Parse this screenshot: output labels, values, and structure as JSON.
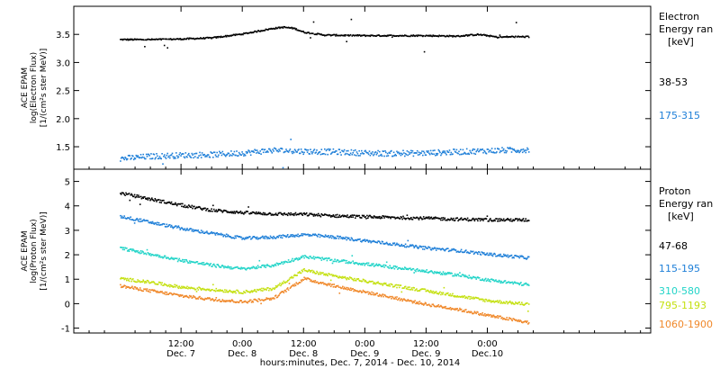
{
  "chart_data": [
    {
      "type": "scatter",
      "panel": "electron",
      "ylabel": [
        "ACE EPAM",
        "log(Electron Flux)",
        "[1/(cm²s ster MeV)]"
      ],
      "ylim": [
        1.1,
        4.0
      ],
      "yticks": [
        1.5,
        2.0,
        2.5,
        3.0,
        3.5
      ],
      "ytick_labels": [
        "1.5",
        "2.0",
        "2.5",
        "3.0",
        "3.5"
      ],
      "legend_title": [
        "Electron",
        "Energy ran",
        "[keV]"
      ],
      "series": [
        {
          "name": "38-53",
          "color": "#000000",
          "x": [
            0,
            6,
            12,
            18,
            24,
            30,
            32,
            34,
            36,
            40,
            48,
            54,
            60,
            66,
            70,
            72,
            74,
            76,
            80
          ],
          "y": [
            3.42,
            3.42,
            3.43,
            3.45,
            3.52,
            3.62,
            3.64,
            3.62,
            3.55,
            3.5,
            3.49,
            3.49,
            3.49,
            3.48,
            3.51,
            3.49,
            3.46,
            3.47,
            3.47
          ]
        },
        {
          "name": "175-315",
          "color": "#1e7fd8",
          "x": [
            0,
            6,
            12,
            18,
            24,
            30,
            36,
            42,
            48,
            54,
            60,
            66,
            72,
            80
          ],
          "y": [
            1.3,
            1.34,
            1.36,
            1.37,
            1.4,
            1.45,
            1.43,
            1.42,
            1.4,
            1.39,
            1.4,
            1.42,
            1.44,
            1.46
          ]
        }
      ]
    },
    {
      "type": "scatter",
      "panel": "proton",
      "ylabel": [
        "ACE EPAM",
        "log(Proton Flux)",
        "[1/(cm²s ster MeV)]"
      ],
      "ylim": [
        -1.2,
        5.5
      ],
      "yticks": [
        -1,
        0,
        1,
        2,
        3,
        4,
        5
      ],
      "ytick_labels": [
        "-1",
        "0",
        "1",
        "2",
        "3",
        "4",
        "5"
      ],
      "legend_title": [
        "Proton",
        "Energy ran",
        "[keV]"
      ],
      "series": [
        {
          "name": "47-68",
          "color": "#000000",
          "x": [
            0,
            6,
            12,
            18,
            24,
            30,
            36,
            42,
            48,
            54,
            60,
            66,
            72,
            80
          ],
          "y": [
            4.55,
            4.3,
            4.05,
            3.85,
            3.75,
            3.7,
            3.68,
            3.62,
            3.58,
            3.55,
            3.52,
            3.48,
            3.46,
            3.45
          ]
        },
        {
          "name": "115-195",
          "color": "#1e7fd8",
          "x": [
            0,
            6,
            12,
            18,
            24,
            30,
            36,
            42,
            48,
            54,
            60,
            66,
            72,
            80
          ],
          "y": [
            3.6,
            3.35,
            3.1,
            2.9,
            2.7,
            2.75,
            2.85,
            2.75,
            2.6,
            2.45,
            2.3,
            2.2,
            2.05,
            1.9
          ]
        },
        {
          "name": "310-580",
          "color": "#22d4c8",
          "x": [
            0,
            6,
            12,
            18,
            24,
            30,
            36,
            42,
            48,
            54,
            60,
            66,
            72,
            80
          ],
          "y": [
            2.3,
            2.05,
            1.8,
            1.6,
            1.45,
            1.6,
            1.95,
            1.8,
            1.65,
            1.5,
            1.35,
            1.2,
            1.0,
            0.8
          ]
        },
        {
          "name": "795-1193",
          "color": "#c4e010",
          "x": [
            0,
            6,
            12,
            18,
            24,
            30,
            36,
            42,
            48,
            54,
            60,
            66,
            72,
            80
          ],
          "y": [
            1.05,
            0.9,
            0.7,
            0.6,
            0.5,
            0.65,
            1.4,
            1.15,
            0.95,
            0.75,
            0.55,
            0.35,
            0.15,
            0.0
          ]
        },
        {
          "name": "1060-1900",
          "color": "#f0882a",
          "x": [
            0,
            6,
            12,
            18,
            24,
            30,
            36,
            42,
            48,
            54,
            60,
            66,
            72,
            80
          ],
          "y": [
            0.75,
            0.55,
            0.35,
            0.2,
            0.1,
            0.25,
            1.05,
            0.75,
            0.5,
            0.25,
            0.0,
            -0.2,
            -0.45,
            -0.75
          ]
        }
      ]
    }
  ],
  "x_axis": {
    "unit": "hours since start",
    "range": [
      -9,
      104
    ],
    "ticks": [
      {
        "x": 12,
        "time": "12:00",
        "date": "Dec. 7"
      },
      {
        "x": 24,
        "time": "0:00",
        "date": "Dec. 8"
      },
      {
        "x": 36,
        "time": "12:00",
        "date": "Dec. 8"
      },
      {
        "x": 48,
        "time": "0:00",
        "date": "Dec. 9"
      },
      {
        "x": 60,
        "time": "12:00",
        "date": "Dec. 9"
      },
      {
        "x": 72,
        "time": "0:00",
        "date": "Dec.10"
      }
    ],
    "label": "hours:minutes, Dec.  7, 2014 - Dec. 10, 2014"
  }
}
